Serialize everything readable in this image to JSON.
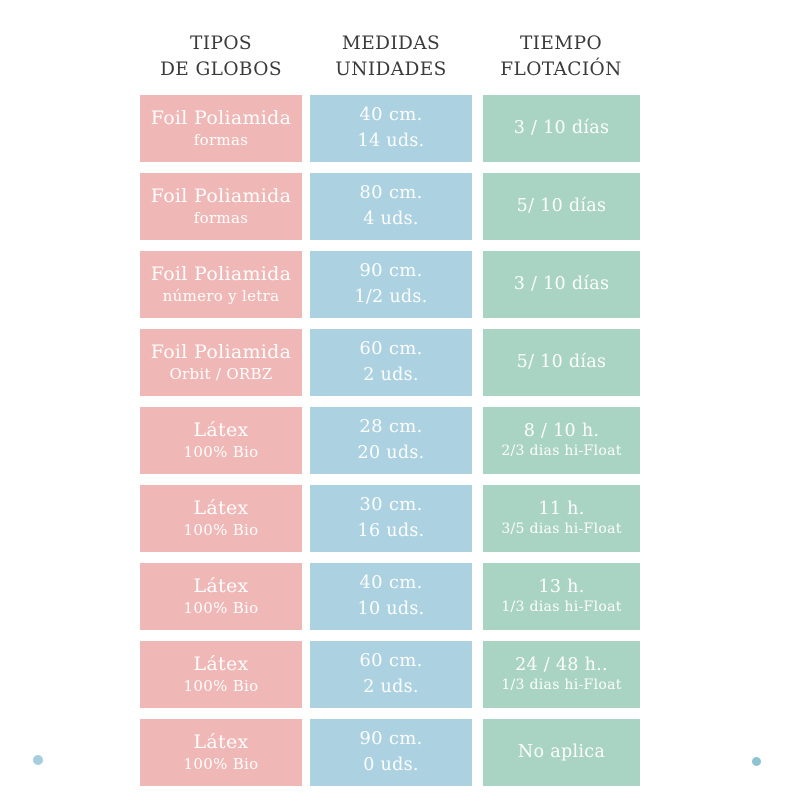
{
  "colors": {
    "background": "#ffffff",
    "pink": "#efb8b6",
    "blue": "#acd2e2",
    "green": "#a9d4c3",
    "header_text": "#3b3b3b",
    "cell_text": "#fdfdfd",
    "dot_left": "#a5cdde",
    "dot_right": "#8ec4d2"
  },
  "chart_data": {
    "type": "table",
    "title": "",
    "headers": [
      {
        "line1": "TIPOS",
        "line2": "DE GLOBOS"
      },
      {
        "line1": "MEDIDAS",
        "line2": "UNIDADES"
      },
      {
        "line1": "TIEMPO",
        "line2": "FLOTACIÓN"
      }
    ],
    "rows": [
      {
        "tipo": {
          "line1": "Foil Poliamida",
          "line2": "formas"
        },
        "medidas": {
          "line1": "40 cm.",
          "line2": "14 uds."
        },
        "tiempo": {
          "line1": "3 / 10 días",
          "line2": ""
        }
      },
      {
        "tipo": {
          "line1": "Foil Poliamida",
          "line2": "formas"
        },
        "medidas": {
          "line1": "80 cm.",
          "line2": "4 uds."
        },
        "tiempo": {
          "line1": "5/ 10 días",
          "line2": ""
        }
      },
      {
        "tipo": {
          "line1": "Foil Poliamida",
          "line2": "número y letra"
        },
        "medidas": {
          "line1": "90 cm.",
          "line2": "1/2 uds."
        },
        "tiempo": {
          "line1": "3 / 10 días",
          "line2": ""
        }
      },
      {
        "tipo": {
          "line1": "Foil Poliamida",
          "line2": "Orbit / ORBZ"
        },
        "medidas": {
          "line1": "60 cm.",
          "line2": "2 uds."
        },
        "tiempo": {
          "line1": "5/ 10 días",
          "line2": ""
        }
      },
      {
        "tipo": {
          "line1": "Látex",
          "line2": "100% Bio"
        },
        "medidas": {
          "line1": "28 cm.",
          "line2": "20 uds."
        },
        "tiempo": {
          "line1": "8 / 10 h.",
          "line2": "2/3 dias hi-Float"
        }
      },
      {
        "tipo": {
          "line1": "Látex",
          "line2": "100% Bio"
        },
        "medidas": {
          "line1": "30 cm.",
          "line2": "16 uds."
        },
        "tiempo": {
          "line1": "11 h.",
          "line2": "3/5 dias hi-Float"
        }
      },
      {
        "tipo": {
          "line1": "Látex",
          "line2": "100% Bio"
        },
        "medidas": {
          "line1": "40 cm.",
          "line2": "10 uds."
        },
        "tiempo": {
          "line1": "13 h.",
          "line2": "1/3 dias hi-Float"
        }
      },
      {
        "tipo": {
          "line1": "Látex",
          "line2": "100% Bio"
        },
        "medidas": {
          "line1": "60 cm.",
          "line2": "2 uds."
        },
        "tiempo": {
          "line1": "24 / 48 h..",
          "line2": "1/3 dias hi-Float"
        }
      },
      {
        "tipo": {
          "line1": "Látex",
          "line2": "100% Bio"
        },
        "medidas": {
          "line1": "90 cm.",
          "line2": "0 uds."
        },
        "tiempo": {
          "line1": "No aplica",
          "line2": ""
        }
      }
    ]
  }
}
